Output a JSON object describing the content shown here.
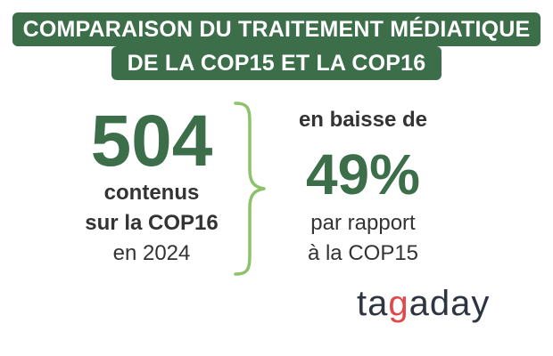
{
  "title": {
    "line1": "COMPARAISON DU TRAITEMENT MÉDIATIQUE",
    "line2": "DE LA COP15 ET LA COP16"
  },
  "left": {
    "number": "504",
    "line1": "contenus",
    "line2": "sur la COP16",
    "line3": "en 2024"
  },
  "right": {
    "head": "en baisse de",
    "percent": "49%",
    "line1": "par rapport",
    "line2": "à la COP15"
  },
  "logo": {
    "text": "tagaday"
  },
  "colors": {
    "brand_green": "#3c6e4a",
    "brace_green": "#8bc26a",
    "logo_dark": "#2f3540",
    "logo_accent": "#e2474b",
    "text_dark": "#333333"
  }
}
